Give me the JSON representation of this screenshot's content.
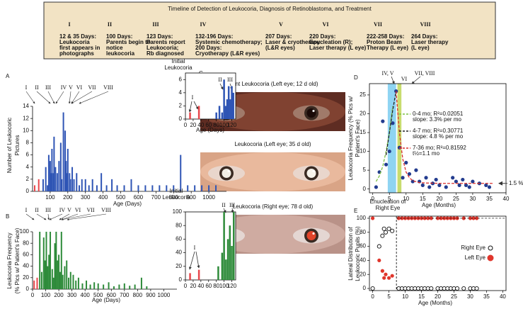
{
  "timeline": {
    "title": "Timeline of Detection of Leukocoria, Diagnosis of Retinoblastoma, and Treatment",
    "stages": [
      {
        "numeral": "I",
        "lines": [
          "12 & 35 Days:",
          "Leukocoria",
          "first appears in",
          "photographs"
        ]
      },
      {
        "numeral": "II",
        "lines": [
          "100 Days:",
          "Parents begin to",
          "notice",
          "leukocoria"
        ]
      },
      {
        "numeral": "III",
        "lines": [
          "123 Days:",
          "Parents report",
          "Leukocoria;",
          "Rb diagnosed"
        ]
      },
      {
        "numeral": "IV",
        "lines": [
          "132-196 Days:",
          "Systemic chemotherapy;",
          "200 Days:",
          "Cryotherapy (L&R eyes)"
        ]
      },
      {
        "numeral": "V",
        "lines": [
          "207 Days:",
          "Laser & cryotherapy",
          "(L&R eyes)"
        ]
      },
      {
        "numeral": "VI",
        "lines": [
          "220 Days:",
          "Enucleation (R);",
          "Laser therapy (L eye)"
        ]
      },
      {
        "numeral": "VII",
        "lines": [
          "222-258 Days:",
          "Proton Beam",
          "Therapy (L eye)"
        ]
      },
      {
        "numeral": "VIII",
        "lines": [
          "264 Days:",
          "Laser therapy",
          "(L eye)"
        ]
      }
    ]
  },
  "panel_labels": [
    "A",
    "B",
    "C",
    "D",
    "E"
  ],
  "photos": [
    {
      "caption": "Faint Leukocoria (Left eye; 12 d old)"
    },
    {
      "caption": "Leukocoria (Left eye; 35 d old)"
    },
    {
      "caption": "Leukocoria (Right eye; 78 d old)"
    }
  ],
  "chart_data": [
    {
      "type": "bar",
      "frame": "axes",
      "xlim": [
        0,
        1100
      ],
      "ylim": [
        0,
        14
      ],
      "xticks": [
        100,
        200,
        300,
        400,
        500,
        600,
        700,
        800,
        900,
        1000
      ],
      "yticks": [
        0,
        2,
        4,
        6,
        8,
        10,
        12,
        14
      ],
      "xlabel": "Age (Days)",
      "ylabel": [
        "Number of Leukocoric",
        "Pictures"
      ],
      "series": [
        {
          "color": "#e8474c",
          "x": [
            12,
            35
          ],
          "values": [
            1,
            2
          ]
        },
        {
          "color": "#2f55b5",
          "x": [
            60,
            75,
            85,
            92,
            100,
            105,
            110,
            118,
            122,
            130,
            140,
            150,
            160,
            165,
            175,
            185,
            190,
            195,
            200,
            210,
            215,
            225,
            235,
            250,
            265,
            280,
            300,
            320,
            340,
            365,
            390,
            420,
            450,
            480,
            520,
            560,
            600,
            640,
            680,
            720,
            760,
            800,
            840,
            880,
            920,
            960,
            1000,
            1040
          ],
          "values": [
            2,
            4,
            1,
            6,
            5,
            3,
            7,
            3,
            9,
            4,
            3,
            5,
            8,
            2,
            13,
            10,
            5,
            3,
            7,
            3,
            2,
            4,
            2,
            3,
            1,
            2,
            2,
            1,
            2,
            1,
            3,
            1,
            2,
            1,
            1,
            2,
            1,
            1,
            1,
            1,
            1,
            1,
            6,
            1,
            1,
            1,
            1,
            1
          ]
        }
      ]
    },
    {
      "type": "bar",
      "frame": "box",
      "xlim": [
        0,
        130
      ],
      "ylim": [
        0,
        7
      ],
      "xticks": [
        0,
        20,
        40,
        60,
        80,
        100,
        120
      ],
      "yticks": [
        0,
        2,
        4,
        6
      ],
      "xlabel": "Age (Days)",
      "annotations": [
        "Initial",
        "Leukocoria",
        "I",
        "II",
        "III"
      ],
      "series": [
        {
          "color": "#e8474c",
          "x": [
            12,
            35
          ],
          "values": [
            1,
            2
          ]
        },
        {
          "color": "#2f55b5",
          "x": [
            80,
            88,
            95,
            100,
            104,
            108,
            112,
            116,
            120,
            124
          ],
          "values": [
            1,
            2,
            1,
            6,
            2,
            3,
            5,
            3,
            5,
            4
          ]
        }
      ]
    },
    {
      "type": "bar",
      "frame": "axes",
      "xlim": [
        0,
        1100
      ],
      "ylim": [
        0,
        100
      ],
      "xticks": [
        0,
        100,
        200,
        300,
        400,
        500,
        600,
        700,
        800,
        900,
        1000
      ],
      "yticks": [
        0,
        20,
        40,
        60,
        80,
        100
      ],
      "xlabel": "Age (Days)",
      "ylabel": [
        "Leukocoria Frequency",
        "(% Pics w/ Patient's Face)"
      ],
      "series": [
        {
          "color": "#e8474c",
          "x": [
            12,
            35
          ],
          "values": [
            15,
            20
          ]
        },
        {
          "color": "#2e8b3a",
          "x": [
            55,
            70,
            85,
            95,
            105,
            115,
            125,
            135,
            150,
            160,
            170,
            180,
            190,
            200,
            210,
            220,
            230,
            245,
            260,
            275,
            290,
            310,
            330,
            350,
            380,
            410,
            440,
            470,
            500,
            540,
            580,
            620,
            660,
            700,
            740,
            780,
            830,
            870
          ],
          "values": [
            100,
            30,
            90,
            50,
            100,
            40,
            60,
            100,
            35,
            20,
            80,
            100,
            50,
            60,
            30,
            100,
            25,
            40,
            50,
            20,
            30,
            25,
            15,
            20,
            10,
            15,
            8,
            12,
            10,
            8,
            12,
            5,
            8,
            10,
            6,
            8,
            20,
            5
          ]
        }
      ]
    },
    {
      "type": "bar",
      "frame": "box",
      "xlim": [
        0,
        130
      ],
      "ylim": [
        0,
        100
      ],
      "xticks": [
        0,
        20,
        40,
        60,
        80,
        100,
        120
      ],
      "yticks": [
        0,
        20,
        40,
        60,
        80,
        100
      ],
      "annotations": [
        "Initial",
        "Leukocoria",
        "I",
        "II",
        "III"
      ],
      "series": [
        {
          "color": "#e8474c",
          "x": [
            12,
            35
          ],
          "values": [
            10,
            15
          ]
        },
        {
          "color": "#2e8b3a",
          "x": [
            85,
            95,
            100,
            105,
            110,
            115,
            120,
            125
          ],
          "values": [
            20,
            40,
            100,
            30,
            60,
            80,
            50,
            100
          ]
        }
      ]
    },
    {
      "type": "scatter",
      "frame": "box",
      "xlim": [
        -1,
        40
      ],
      "ylim": [
        -1,
        28
      ],
      "xticks": [
        0,
        5,
        10,
        15,
        20,
        25,
        30,
        35,
        40
      ],
      "yticks": [
        0,
        5,
        10,
        15,
        20,
        25
      ],
      "xlabel": "Age (Months)",
      "ylabel": [
        "Leukocoria Frequency (% Pics w/",
        "Patient's Face)"
      ],
      "annotations": [
        "IV, V",
        "VI",
        "VII, VIII"
      ],
      "shaded": [
        {
          "x": [
            4.5,
            7
          ],
          "color": "#8fd4f2"
        },
        {
          "x": [
            7.4,
            8.6
          ],
          "color": "#c8dc6e"
        }
      ],
      "reference": {
        "value": 1.5,
        "label": "1.5 %"
      },
      "series": [
        {
          "style": "points",
          "color": "#233c8f",
          "x": [
            1,
            2,
            3,
            4,
            5,
            6,
            7,
            8,
            9,
            10,
            11,
            12,
            13,
            14,
            15,
            16,
            17,
            18,
            19,
            20,
            22,
            24,
            25,
            26,
            27,
            28,
            29,
            30,
            32,
            34,
            35
          ],
          "values": [
            0.5,
            4.5,
            18,
            6.5,
            10,
            17.5,
            26,
            11,
            3,
            7,
            4,
            2,
            5,
            2,
            1,
            3,
            0.5,
            1.5,
            2.5,
            1,
            0.5,
            3,
            2,
            1,
            2.5,
            1,
            0.5,
            2,
            1.5,
            1,
            0.5
          ]
        },
        {
          "style": "dashed",
          "color": "#7cc142",
          "name": "0-4 mo; R²=0.02051",
          "detail": "slope: 3.3% per mo",
          "x": [
            1,
            2,
            3,
            4,
            5,
            6
          ],
          "values": [
            2,
            3.5,
            6,
            10,
            15,
            22
          ]
        },
        {
          "style": "dashed",
          "color": "#222222",
          "name": "4-7 mo; R²=0.30771",
          "detail": "slope: 4.8 % per mo",
          "x": [
            4,
            5,
            6,
            7
          ],
          "values": [
            9,
            15,
            21,
            26
          ]
        },
        {
          "style": "dashed",
          "color": "#d9302c",
          "name": "7-36 mo; R²=0.81592",
          "detail": "t½=1.1 mo",
          "x": [
            7,
            8,
            9,
            10,
            11,
            12,
            14,
            16,
            20,
            25,
            30,
            36
          ],
          "values": [
            26,
            15,
            8,
            4.5,
            3,
            2.2,
            1.7,
            1.6,
            1.5,
            1.5,
            1.5,
            1.5
          ]
        }
      ]
    },
    {
      "type": "scatter",
      "frame": "box",
      "xlim": [
        -1,
        41
      ],
      "ylim": [
        -3,
        103
      ],
      "xticks": [
        0,
        5,
        10,
        15,
        20,
        25,
        30,
        35,
        40
      ],
      "yticks": [
        0,
        20,
        40,
        60,
        80,
        100
      ],
      "xlabel": "Age (Months)",
      "ylabel": [
        "Lateral Distribution of",
        "Leukocoric Pupils (%)"
      ],
      "marker_line": {
        "value": 7.3,
        "label": [
          "Enucleation of",
          "Right Eye"
        ]
      },
      "series": [
        {
          "style": "points",
          "marker": "open",
          "color": "#111111",
          "name": "Right Eye",
          "x": [
            0,
            2,
            3,
            3.5,
            4,
            5,
            6,
            8,
            9,
            10,
            11,
            12,
            13,
            14,
            15,
            16,
            17,
            18,
            20,
            21,
            22,
            23,
            24,
            25,
            26,
            28,
            30,
            31,
            32
          ],
          "values": [
            0,
            60,
            75,
            85,
            80,
            85,
            82,
            0,
            0,
            0,
            0,
            0,
            0,
            0,
            0,
            0,
            0,
            0,
            0,
            0,
            0,
            0,
            0,
            0,
            0,
            0,
            0,
            0,
            0
          ]
        },
        {
          "style": "points",
          "marker": "filled",
          "color": "#e0362c",
          "name": "Left Eye",
          "x": [
            0,
            2,
            3,
            3.5,
            4,
            5,
            6,
            8,
            9,
            10,
            11,
            12,
            13,
            14,
            15,
            16,
            17,
            18,
            20,
            21,
            22,
            23,
            24,
            25,
            26,
            28,
            30,
            31,
            32
          ],
          "values": [
            100,
            40,
            25,
            15,
            20,
            15,
            18,
            100,
            100,
            100,
            100,
            100,
            100,
            100,
            100,
            100,
            100,
            100,
            100,
            100,
            100,
            100,
            100,
            100,
            100,
            100,
            100,
            100,
            100
          ]
        }
      ]
    }
  ]
}
